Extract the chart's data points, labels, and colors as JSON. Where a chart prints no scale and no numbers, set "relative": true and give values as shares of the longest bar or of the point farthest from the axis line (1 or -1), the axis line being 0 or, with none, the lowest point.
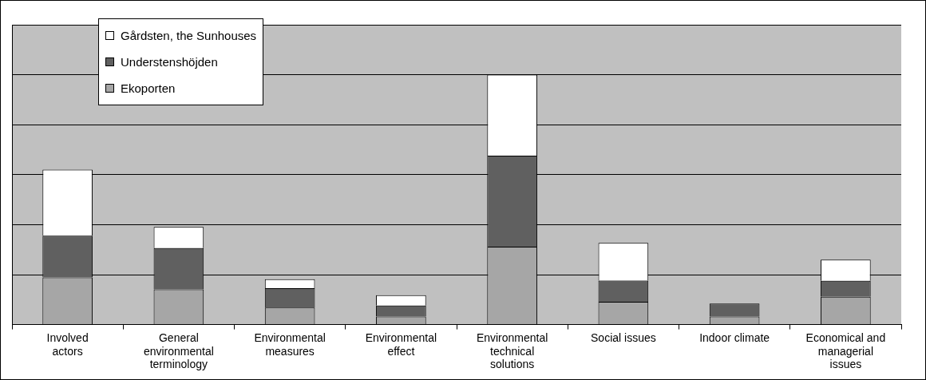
{
  "chart_data": {
    "type": "bar",
    "stacked": true,
    "relative": true,
    "grid": "y",
    "legend": "top left",
    "categories": [
      "Involved actors",
      "General environmental terminology",
      "Environmental measures",
      "Environmental effect",
      "Environmental technical solutions",
      "Social issues",
      "Indoor climate",
      "Economical and managerial issues"
    ],
    "series": [
      {
        "name": "Ekoporten",
        "color": "#a6a6a6",
        "values": [
          0.189,
          0.141,
          0.068,
          0.032,
          0.312,
          0.091,
          0.032,
          0.111
        ]
      },
      {
        "name": "Understenshöjden",
        "color": "#606060",
        "values": [
          0.167,
          0.165,
          0.078,
          0.044,
          0.364,
          0.085,
          0.052,
          0.064
        ]
      },
      {
        "name": "Gårdsten, the Sunhouses",
        "color": "#ffffff",
        "values": [
          0.264,
          0.085,
          0.036,
          0.042,
          0.324,
          0.151,
          null,
          0.085
        ]
      }
    ]
  }
}
